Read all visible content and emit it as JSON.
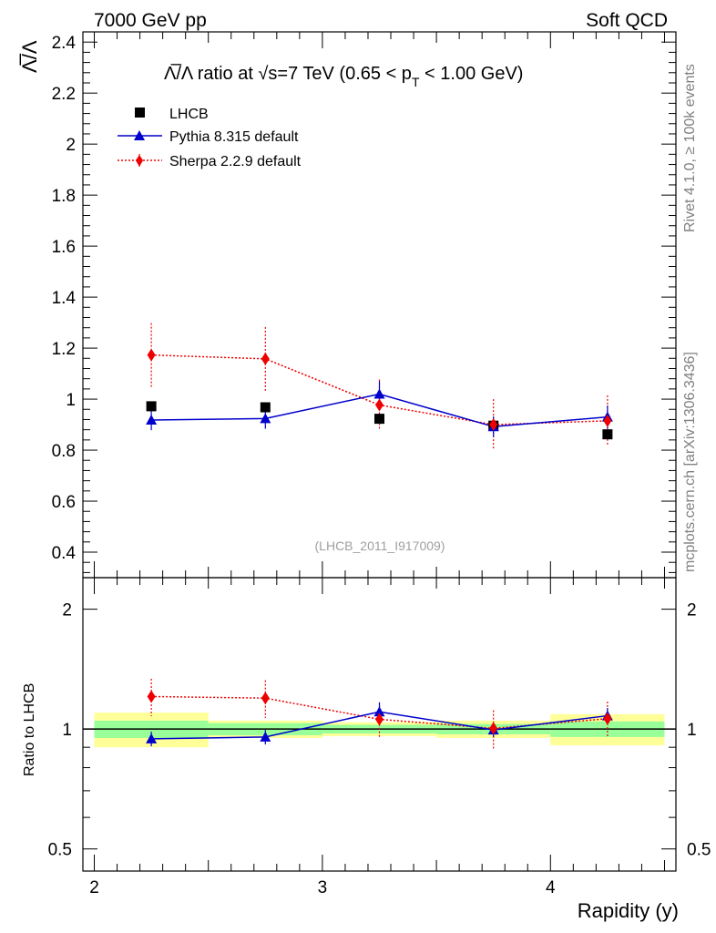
{
  "header": {
    "left": "7000 GeV pp",
    "right": "Soft QCD"
  },
  "side_text": {
    "rivet": "Rivet 4.1.0, ≥ 100k events",
    "source": "mcplots.cern.ch [arXiv:1306.3436]"
  },
  "chart_data": {
    "type": "scatter",
    "title": "Λ̅/Λ ratio at √s=7 TeV (0.65 < p_T < 1.00 GeV)",
    "title_parts": {
      "a": "Λ̅/Λ ratio at √s=7 TeV (0.65 < p",
      "sub": "T",
      "b": " < 1.00 GeV)"
    },
    "ylabel": "Λ̅/Λ",
    "xlabel": "Rapidity (y)",
    "ratio_ylabel": "Ratio to LHCB",
    "watermark": "(LHCB_2011_I917009)",
    "xlim": [
      1.95,
      4.55
    ],
    "ylim": [
      0.3,
      2.44
    ],
    "ratio_ylim": [
      0.44,
      2.4
    ],
    "x_ticks": [
      2,
      3,
      4
    ],
    "x_tick_labels": [
      "2",
      "3",
      "4"
    ],
    "y_ticks": [
      0.4,
      0.6,
      0.8,
      1,
      1.2,
      1.4,
      1.6,
      1.8,
      2,
      2.2,
      2.4
    ],
    "y_tick_labels": [
      "0.4",
      "0.6",
      "0.8",
      "1",
      "1.2",
      "1.4",
      "1.6",
      "1.8",
      "2",
      "2.2",
      "2.4"
    ],
    "ratio_ticks": [
      0.5,
      1,
      2
    ],
    "ratio_tick_labels": [
      "0.5",
      "1",
      "2"
    ],
    "bins": [
      [
        2.0,
        2.5
      ],
      [
        2.5,
        3.0
      ],
      [
        3.0,
        3.5
      ],
      [
        3.5,
        4.0
      ],
      [
        4.0,
        4.5
      ]
    ],
    "x": [
      2.25,
      2.75,
      3.25,
      3.75,
      4.25
    ],
    "series": [
      {
        "name": "LHCB",
        "marker": "square",
        "color": "#000000",
        "values": [
          0.972,
          0.968,
          0.923,
          0.896,
          0.862
        ],
        "band_inner": [
          0.05,
          0.035,
          0.025,
          0.03,
          0.045
        ],
        "band_outer": [
          0.1,
          0.05,
          0.04,
          0.05,
          0.09
        ]
      },
      {
        "name": "Pythia 8.315 default",
        "marker": "triangle",
        "color": "#0000cc",
        "line": "solid",
        "values": [
          0.918,
          0.924,
          1.02,
          0.892,
          0.93
        ],
        "errors": [
          0.04,
          0.04,
          0.05,
          0.04,
          0.045
        ]
      },
      {
        "name": "Sherpa 2.2.9 default",
        "marker": "diamond",
        "color": "#ee0000",
        "line": "dotted",
        "values": [
          1.173,
          1.158,
          0.977,
          0.9,
          0.915
        ],
        "errors": [
          0.125,
          0.125,
          0.1,
          0.1,
          0.1
        ]
      }
    ],
    "ratio_series": [
      {
        "name": "Pythia 8.315 default",
        "values": [
          0.945,
          0.955,
          1.105,
          0.995,
          1.08
        ],
        "errors": [
          0.04,
          0.04,
          0.06,
          0.04,
          0.05
        ]
      },
      {
        "name": "Sherpa 2.2.9 default",
        "values": [
          1.207,
          1.196,
          1.058,
          1.004,
          1.062
        ],
        "errors": [
          0.13,
          0.13,
          0.11,
          0.11,
          0.11
        ]
      }
    ],
    "legend_position": "top-left"
  }
}
